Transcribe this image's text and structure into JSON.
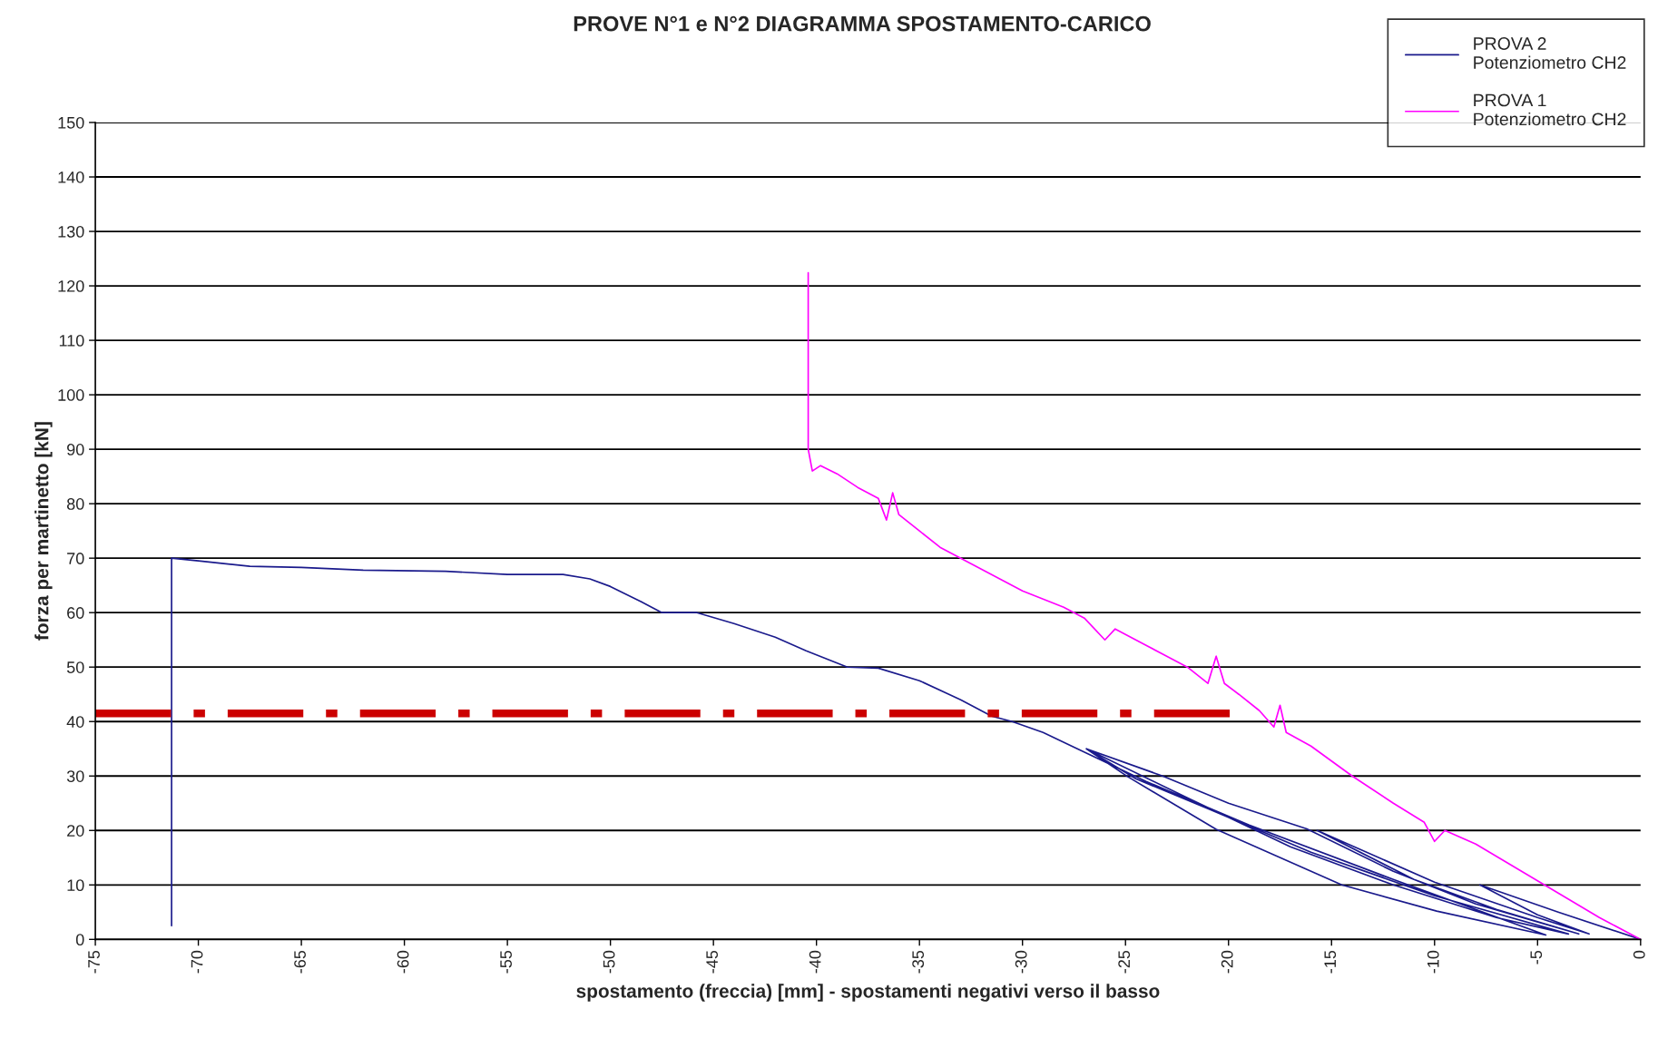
{
  "chart_data": {
    "type": "line",
    "title": "PROVE N°1 e N°2 DIAGRAMMA SPOSTAMENTO-CARICO",
    "xlabel": "spostamento (freccia) [mm] - spostamenti negativi verso il basso",
    "ylabel": "forza per martinetto [kN]",
    "xlim": [
      -75,
      0
    ],
    "xticks": [
      -75,
      -70,
      -65,
      -60,
      -55,
      -50,
      -45,
      -40,
      -35,
      -30,
      -25,
      -20,
      -15,
      -10,
      -5,
      0
    ],
    "ylim": [
      0,
      150
    ],
    "yticks": [
      0,
      10,
      20,
      30,
      40,
      50,
      60,
      70,
      80,
      90,
      100,
      110,
      120,
      130,
      140,
      150
    ],
    "grid": "y",
    "legend": "top right",
    "marker": "none",
    "series": [
      {
        "name": "PROVA 2\nPotenziometro CH2",
        "color": "#1a1a8c",
        "line_style": "solid",
        "x": [
          0,
          -4,
          -7.8,
          -5,
          -2.5,
          -5,
          -10,
          -15.7,
          -11,
          -7,
          -3,
          -8,
          -12,
          -16.2,
          -20,
          -23.2,
          -26.9,
          -22,
          -17,
          -12,
          -7,
          -3.5,
          -10,
          -16,
          -21,
          -24.5,
          -26.9,
          -24.9,
          -20.6,
          -14.5,
          -9.9,
          -4.6,
          -12,
          -19,
          -24,
          -27.5,
          -29,
          -30.5,
          -31.5,
          -33,
          -35,
          -37,
          -38.5,
          -40.5,
          -42,
          -44,
          -45.8,
          -47.5,
          -48.5,
          -50,
          -51,
          -52.3,
          -55,
          -58,
          -62,
          -65,
          -67.5,
          -70,
          -71.3,
          -71.3
        ],
        "values": [
          0,
          5,
          10,
          4.5,
          1,
          4,
          10.5,
          20,
          11,
          5.5,
          1,
          6.5,
          12.5,
          20.3,
          25,
          30,
          35,
          26,
          17,
          10,
          4,
          1,
          8,
          16,
          24,
          29.5,
          35,
          29.9,
          20.2,
          10,
          5.2,
          0.8,
          11,
          21,
          29,
          35.3,
          38,
          40,
          41,
          44,
          47.5,
          49.8,
          50,
          53,
          55.5,
          58,
          60,
          60,
          62,
          64.8,
          66.2,
          67,
          67,
          67.6,
          67.8,
          68.3,
          68.5,
          69.5,
          70,
          2.5
        ]
      },
      {
        "name": "PROVA 1\nPotenziometro CH2",
        "color": "#ff00ff",
        "line_style": "solid",
        "x": [
          0,
          -2,
          -4,
          -6,
          -8,
          -9.5,
          -10,
          -10.5,
          -12,
          -14,
          -16,
          -17.2,
          -17.5,
          -17.8,
          -18.5,
          -19.5,
          -20.2,
          -20.6,
          -21,
          -22,
          -23,
          -24,
          -25.5,
          -26,
          -27,
          -28,
          -29,
          -30,
          -31,
          -32,
          -33,
          -34,
          -35,
          -36,
          -36.3,
          -36.6,
          -37,
          -38,
          -39,
          -39.8,
          -40.2,
          -40.4,
          -40.4
        ],
        "values": [
          0,
          4,
          8.5,
          13,
          17.5,
          20,
          18,
          21.5,
          25,
          30,
          35.5,
          38,
          43,
          39,
          42,
          45,
          47,
          52,
          47,
          50,
          52,
          54,
          57,
          55,
          59,
          61,
          62.5,
          64,
          66,
          68,
          70,
          72,
          75,
          78,
          82,
          77,
          81,
          83,
          85.5,
          87,
          86,
          90,
          122.4
        ]
      },
      {
        "color": "#cc0000",
        "line_style": "dashed",
        "x": [
          -75,
          -19.6
        ],
        "values": [
          41.5,
          41.5
        ]
      }
    ]
  }
}
